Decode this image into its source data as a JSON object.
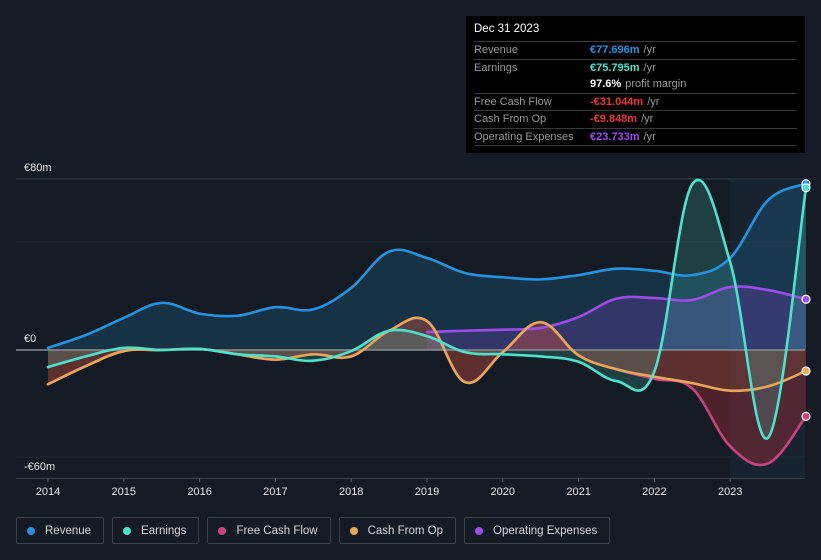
{
  "tooltip": {
    "date": "Dec 31 2023",
    "rows": [
      {
        "label": "Revenue",
        "value": "€77.696m",
        "unit": "/yr",
        "color": "#2394df"
      },
      {
        "label": "Earnings",
        "value": "€75.795m",
        "unit": "/yr",
        "color": "#4de2cc"
      },
      {
        "label": "",
        "value": "97.6%",
        "unit": "profit margin",
        "color": "#ffffff"
      },
      {
        "label": "Free Cash Flow",
        "value": "-€31.044m",
        "unit": "/yr",
        "color": "#e8383f"
      },
      {
        "label": "Cash From Op",
        "value": "-€9.848m",
        "unit": "/yr",
        "color": "#e8383f"
      },
      {
        "label": "Operating Expenses",
        "value": "€23.733m",
        "unit": "/yr",
        "color": "#9d4de8"
      }
    ]
  },
  "legend": [
    {
      "label": "Revenue",
      "color": "#2394df"
    },
    {
      "label": "Earnings",
      "color": "#4de2cc"
    },
    {
      "label": "Free Cash Flow",
      "color": "#c8437f"
    },
    {
      "label": "Cash From Op",
      "color": "#e8a85a"
    },
    {
      "label": "Operating Expenses",
      "color": "#9d4de8"
    }
  ],
  "chart_data": {
    "type": "area",
    "title": "",
    "xlabel": "",
    "ylabel": "",
    "currency_unit": "€m",
    "ylim": [
      -60,
      80
    ],
    "y_tick_labels": [
      {
        "value": 80,
        "label": "€80m"
      },
      {
        "value": 0,
        "label": "€0"
      },
      {
        "value": -60,
        "label": "-€60m"
      }
    ],
    "x_tick_labels": [
      "2014",
      "2015",
      "2016",
      "2017",
      "2018",
      "2019",
      "2020",
      "2021",
      "2022",
      "2023"
    ],
    "xlim": [
      2014,
      2024
    ],
    "highlight_from": 2023,
    "grid": true,
    "legend_position": "bottom-left",
    "x": [
      2014.0,
      2014.5,
      2015.0,
      2015.5,
      2016.0,
      2016.5,
      2017.0,
      2017.5,
      2018.0,
      2018.5,
      2019.0,
      2019.5,
      2020.0,
      2020.5,
      2021.0,
      2021.5,
      2022.0,
      2022.5,
      2023.0,
      2023.5,
      2024.0
    ],
    "series": [
      {
        "name": "Revenue",
        "color": "#2394df",
        "values": [
          1,
          7,
          15,
          22,
          17,
          16,
          20,
          19,
          29,
          46,
          43,
          36,
          34,
          33,
          35,
          38,
          37,
          35,
          43,
          70,
          77.7
        ]
      },
      {
        "name": "Earnings",
        "color": "#4de2cc",
        "values": [
          -8,
          -3,
          1,
          0,
          0.5,
          -2,
          -3,
          -5,
          -0.5,
          9,
          6.5,
          -1,
          -2,
          -3,
          -5.5,
          -14.5,
          -10,
          77.5,
          41,
          -41,
          75.8
        ]
      },
      {
        "name": "Free Cash Flow",
        "color": "#c8437f",
        "values": [
          -16,
          -7.5,
          -0.5,
          0,
          0.5,
          -2,
          -4.5,
          -2,
          -3,
          9,
          13.5,
          -15,
          -1,
          13,
          -2.5,
          -9,
          -13.5,
          -18,
          -45,
          -53,
          -31.0
        ]
      },
      {
        "name": "Cash From Op",
        "color": "#e8a85a",
        "values": [
          -16,
          -7.5,
          -0.5,
          0,
          0.5,
          -2,
          -4.5,
          -2,
          -3,
          9,
          13.5,
          -15,
          -1,
          13,
          -2.5,
          -9,
          -12.5,
          -15.5,
          -19,
          -17,
          -9.8
        ]
      },
      {
        "name": "Operating Expenses",
        "color": "#9d4de8",
        "values": [
          null,
          null,
          null,
          null,
          null,
          null,
          null,
          null,
          null,
          null,
          8.4,
          9,
          9.5,
          10.3,
          15.4,
          24,
          24.3,
          23.4,
          29.4,
          28,
          23.7
        ]
      }
    ]
  }
}
